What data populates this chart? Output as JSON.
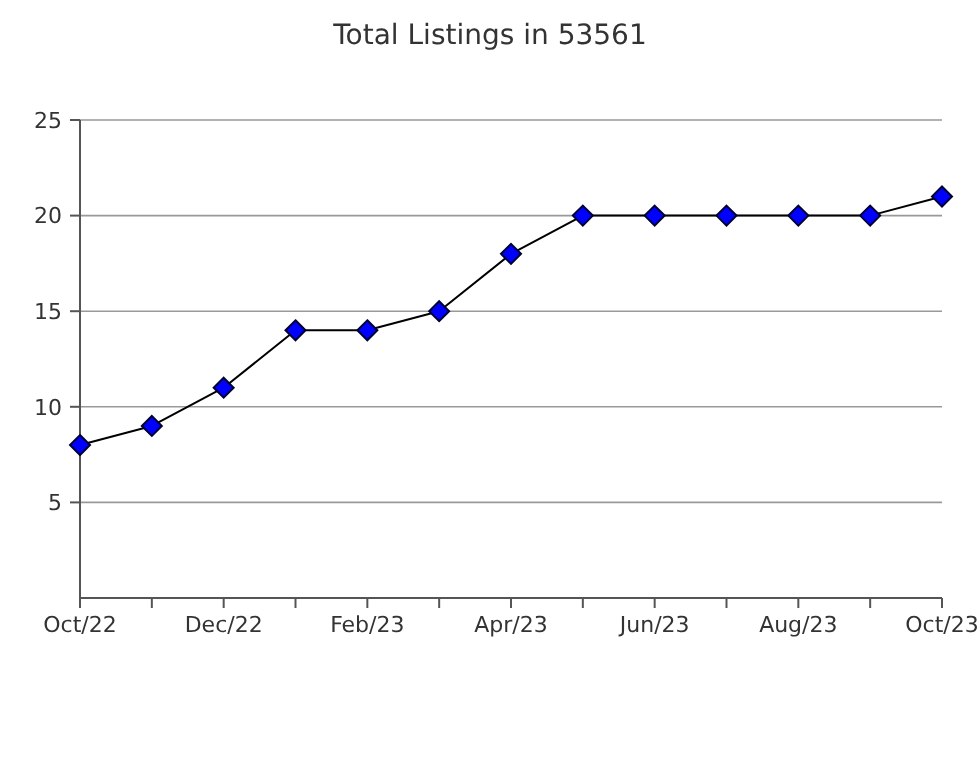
{
  "chart_data": {
    "type": "line",
    "title": "Total Listings in 53561",
    "categories": [
      "Oct/22",
      null,
      "Dec/22",
      null,
      "Feb/23",
      null,
      "Apr/23",
      null,
      "Jun/23",
      null,
      "Aug/23",
      null,
      "Oct/23"
    ],
    "series": [
      {
        "color": "#0000ff",
        "values": [
          8,
          9,
          11,
          14,
          14,
          15,
          18,
          20,
          20,
          20,
          20,
          20,
          21
        ]
      }
    ],
    "ylim": [
      0,
      25
    ],
    "yticks": [
      5,
      10,
      15,
      20,
      25
    ],
    "grid": "y",
    "marker": "diamond",
    "line_style": "solid"
  }
}
